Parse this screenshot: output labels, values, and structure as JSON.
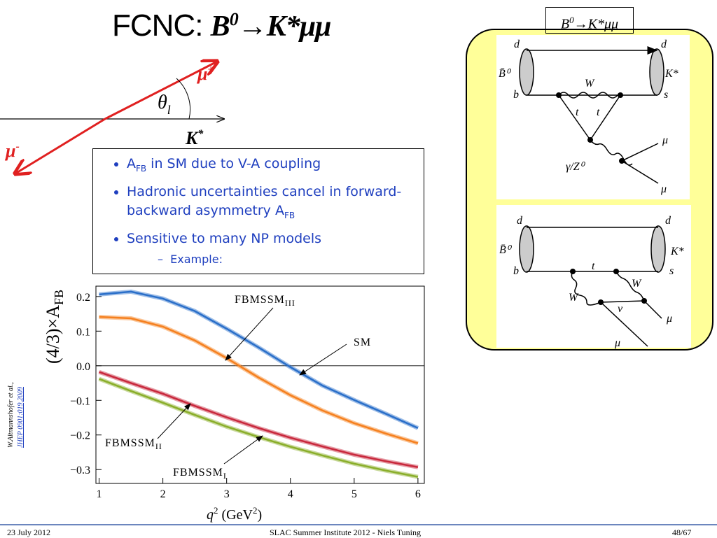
{
  "title": {
    "prefix": "FCNC:",
    "formula": {
      "base": "B",
      "sup": "0",
      "rest": "→K*μμ"
    }
  },
  "angle_diagram": {
    "mu_plus": {
      "base": "μ",
      "sup": "+"
    },
    "mu_minus": {
      "base": "μ",
      "sup": "-"
    },
    "theta": {
      "base": "θ",
      "sub": "l"
    },
    "kstar": {
      "base": "K",
      "sup": "*"
    }
  },
  "bullets": [
    {
      "parts": [
        {
          "text": "A"
        },
        {
          "sub": "FB"
        },
        {
          "text": " in SM due to V-A coupling"
        }
      ]
    },
    {
      "parts": [
        {
          "text": "Hadronic uncertainties cancel in forward-backward asymmetry A"
        },
        {
          "sub": "FB"
        }
      ]
    },
    {
      "parts": [
        {
          "text": "Sensitive to many NP models"
        }
      ]
    }
  ],
  "sub_bullet": "Example:",
  "box_label": {
    "base": "B",
    "sup": "0",
    "rest": "→K*μμ"
  },
  "feynman": [
    {
      "labels": [
        "d",
        "d",
        "B̄⁰",
        "K*",
        "b",
        "s",
        "W",
        "t",
        "t",
        "μ",
        "γ/Z⁰",
        "μ"
      ]
    },
    {
      "labels": [
        "d",
        "d",
        "B̄⁰",
        "K*",
        "b",
        "t",
        "s",
        "W",
        "W",
        "ν",
        "μ",
        "μ"
      ]
    }
  ],
  "citation": {
    "authors": "W.Altmannshofer et al.,",
    "ref": "JHEP 0901:019,2009"
  },
  "chart_data": {
    "type": "line",
    "ylabel": {
      "text": "(4/3)×A",
      "sub": "FB"
    },
    "xlabel": {
      "q": "q",
      "sup": "2",
      "unit": " (GeV",
      "unit_sup": "2",
      "close": ")"
    },
    "xlim": [
      0.95,
      6.1
    ],
    "ylim": [
      -0.34,
      0.23
    ],
    "xticks": [
      1,
      2,
      3,
      4,
      5,
      6
    ],
    "yticks": [
      {
        "value": -0.3,
        "label": "−0.3"
      },
      {
        "value": -0.2,
        "label": "−0.2"
      },
      {
        "value": -0.1,
        "label": "−0.1"
      },
      {
        "value": 0,
        "label": "0.0"
      },
      0.1,
      0.2
    ],
    "x": [
      1,
      1.5,
      2,
      2.5,
      3,
      3.5,
      4,
      4.5,
      5,
      5.5,
      6
    ],
    "series": [
      {
        "label": {
          "text": "SM"
        },
        "color": "#2a6fc9",
        "values": [
          0.206,
          0.214,
          0.194,
          0.158,
          0.107,
          0.053,
          -0.004,
          -0.057,
          -0.099,
          -0.139,
          -0.18
        ]
      },
      {
        "label": {
          "text": "FBMSSM",
          "sub": "III"
        },
        "color": "#f5801f",
        "values": [
          0.141,
          0.137,
          0.113,
          0.073,
          0.022,
          -0.034,
          -0.085,
          -0.129,
          -0.166,
          -0.196,
          -0.224
        ]
      },
      {
        "label": {
          "text": "FBMSSM",
          "sub": "II"
        },
        "color": "#c8283c",
        "values": [
          -0.018,
          -0.05,
          -0.081,
          -0.116,
          -0.149,
          -0.18,
          -0.208,
          -0.233,
          -0.257,
          -0.276,
          -0.293
        ]
      },
      {
        "label": {
          "text": "FBMSSM",
          "sub": "I"
        },
        "color": "#8aae2a",
        "values": [
          -0.038,
          -0.073,
          -0.107,
          -0.142,
          -0.176,
          -0.206,
          -0.234,
          -0.259,
          -0.283,
          -0.303,
          -0.321
        ]
      }
    ]
  },
  "footer": {
    "date": "23 July 2012",
    "center": "SLAC Summer Institute 2012 - Niels Tuning",
    "page": "48/67"
  }
}
